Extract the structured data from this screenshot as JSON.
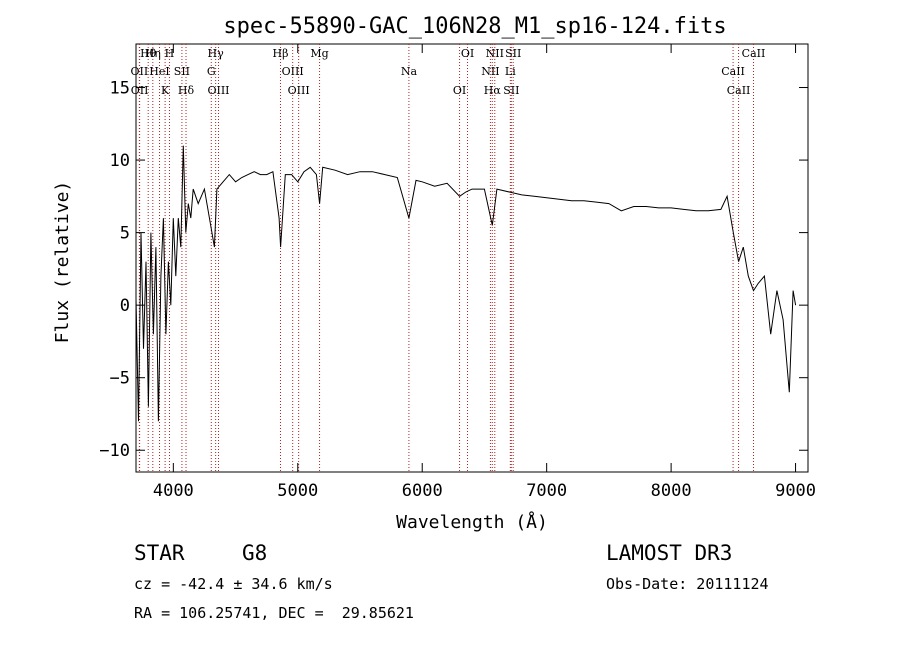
{
  "chart_data": {
    "type": "line",
    "title": "spec-55890-GAC_106N28_M1_sp16-124.fits",
    "xlabel": "Wavelength (Å)",
    "ylabel": "Flux (relative)",
    "xlim": [
      3700,
      9100
    ],
    "ylim": [
      -11.5,
      18
    ],
    "xticks": [
      4000,
      5000,
      6000,
      7000,
      8000,
      9000
    ],
    "yticks": [
      -10,
      -5,
      0,
      5,
      10,
      15
    ],
    "series": [
      {
        "name": "spectrum",
        "color": "#000000",
        "points": [
          [
            3700,
            0.5
          ],
          [
            3720,
            -8
          ],
          [
            3740,
            5
          ],
          [
            3760,
            -3
          ],
          [
            3780,
            3
          ],
          [
            3800,
            -7
          ],
          [
            3820,
            5
          ],
          [
            3840,
            -2
          ],
          [
            3860,
            4
          ],
          [
            3880,
            -8
          ],
          [
            3900,
            2
          ],
          [
            3920,
            6
          ],
          [
            3940,
            -2
          ],
          [
            3960,
            3
          ],
          [
            3980,
            0
          ],
          [
            4000,
            6
          ],
          [
            4020,
            2
          ],
          [
            4040,
            6
          ],
          [
            4060,
            4
          ],
          [
            4080,
            11
          ],
          [
            4100,
            5
          ],
          [
            4120,
            7
          ],
          [
            4140,
            6
          ],
          [
            4160,
            8
          ],
          [
            4200,
            7
          ],
          [
            4250,
            8
          ],
          [
            4300,
            5.5
          ],
          [
            4330,
            4
          ],
          [
            4350,
            8
          ],
          [
            4400,
            8.5
          ],
          [
            4450,
            9
          ],
          [
            4500,
            8.5
          ],
          [
            4550,
            8.8
          ],
          [
            4600,
            9
          ],
          [
            4650,
            9.2
          ],
          [
            4700,
            9
          ],
          [
            4750,
            9
          ],
          [
            4800,
            9.2
          ],
          [
            4850,
            6
          ],
          [
            4862,
            4
          ],
          [
            4900,
            9
          ],
          [
            4950,
            9
          ],
          [
            5000,
            8.5
          ],
          [
            5050,
            9.2
          ],
          [
            5100,
            9.5
          ],
          [
            5150,
            9
          ],
          [
            5175,
            7
          ],
          [
            5200,
            9.5
          ],
          [
            5300,
            9.3
          ],
          [
            5400,
            9
          ],
          [
            5500,
            9.2
          ],
          [
            5600,
            9.2
          ],
          [
            5700,
            9
          ],
          [
            5800,
            8.8
          ],
          [
            5893,
            6
          ],
          [
            5950,
            8.6
          ],
          [
            6000,
            8.5
          ],
          [
            6100,
            8.2
          ],
          [
            6200,
            8.4
          ],
          [
            6300,
            7.5
          ],
          [
            6350,
            7.8
          ],
          [
            6400,
            8
          ],
          [
            6500,
            8
          ],
          [
            6563,
            5.5
          ],
          [
            6600,
            8
          ],
          [
            6700,
            7.8
          ],
          [
            6800,
            7.6
          ],
          [
            6900,
            7.5
          ],
          [
            7000,
            7.4
          ],
          [
            7100,
            7.3
          ],
          [
            7200,
            7.2
          ],
          [
            7300,
            7.2
          ],
          [
            7400,
            7.1
          ],
          [
            7500,
            7.0
          ],
          [
            7600,
            6.5
          ],
          [
            7700,
            6.8
          ],
          [
            7800,
            6.8
          ],
          [
            7900,
            6.7
          ],
          [
            8000,
            6.7
          ],
          [
            8100,
            6.6
          ],
          [
            8200,
            6.5
          ],
          [
            8300,
            6.5
          ],
          [
            8400,
            6.6
          ],
          [
            8450,
            7.5
          ],
          [
            8500,
            5
          ],
          [
            8542,
            3
          ],
          [
            8580,
            4
          ],
          [
            8620,
            2
          ],
          [
            8662,
            1
          ],
          [
            8700,
            1.5
          ],
          [
            8750,
            2
          ],
          [
            8800,
            -2
          ],
          [
            8850,
            1
          ],
          [
            8900,
            -1
          ],
          [
            8950,
            -6
          ],
          [
            8980,
            1
          ],
          [
            9000,
            0
          ]
        ]
      }
    ],
    "lines": [
      {
        "name": "Hθ",
        "x": 3798
      },
      {
        "name": "OII",
        "x": 3727
      },
      {
        "name": "OII",
        "x": 3729
      },
      {
        "name": "Hη",
        "x": 3835
      },
      {
        "name": "HeI",
        "x": 3889
      },
      {
        "name": "K",
        "x": 3934
      },
      {
        "name": "H",
        "x": 3969
      },
      {
        "name": "SII",
        "x": 4069
      },
      {
        "name": "Hδ",
        "x": 4102
      },
      {
        "name": "Hγ",
        "x": 4340
      },
      {
        "name": "G",
        "x": 4305
      },
      {
        "name": "OIII",
        "x": 4363
      },
      {
        "name": "Hβ",
        "x": 4861
      },
      {
        "name": "OIII",
        "x": 4959
      },
      {
        "name": "OIII",
        "x": 5007
      },
      {
        "name": "Mg",
        "x": 5175
      },
      {
        "name": "Na",
        "x": 5893
      },
      {
        "name": "OI",
        "x": 6300
      },
      {
        "name": "OI",
        "x": 6364
      },
      {
        "name": "NII",
        "x": 6548
      },
      {
        "name": "Hα",
        "x": 6563
      },
      {
        "name": "NII",
        "x": 6583
      },
      {
        "name": "Li",
        "x": 6708
      },
      {
        "name": "SII",
        "x": 6716
      },
      {
        "name": "SII",
        "x": 6731
      },
      {
        "name": "CaII",
        "x": 8498
      },
      {
        "name": "CaII",
        "x": 8542
      },
      {
        "name": "CaII",
        "x": 8662
      }
    ]
  },
  "info": {
    "object_class": "STAR",
    "subclass": "G8",
    "survey": "LAMOST DR3",
    "redshift": "cz = -42.4 ± 34.6 km/s",
    "obs_date": "Obs-Date: 20111124",
    "coords": "RA = 106.25741, DEC =  29.85621"
  },
  "colors": {
    "spectrum": "#000000",
    "line_marker": "#b22222",
    "background": "#ffffff"
  }
}
